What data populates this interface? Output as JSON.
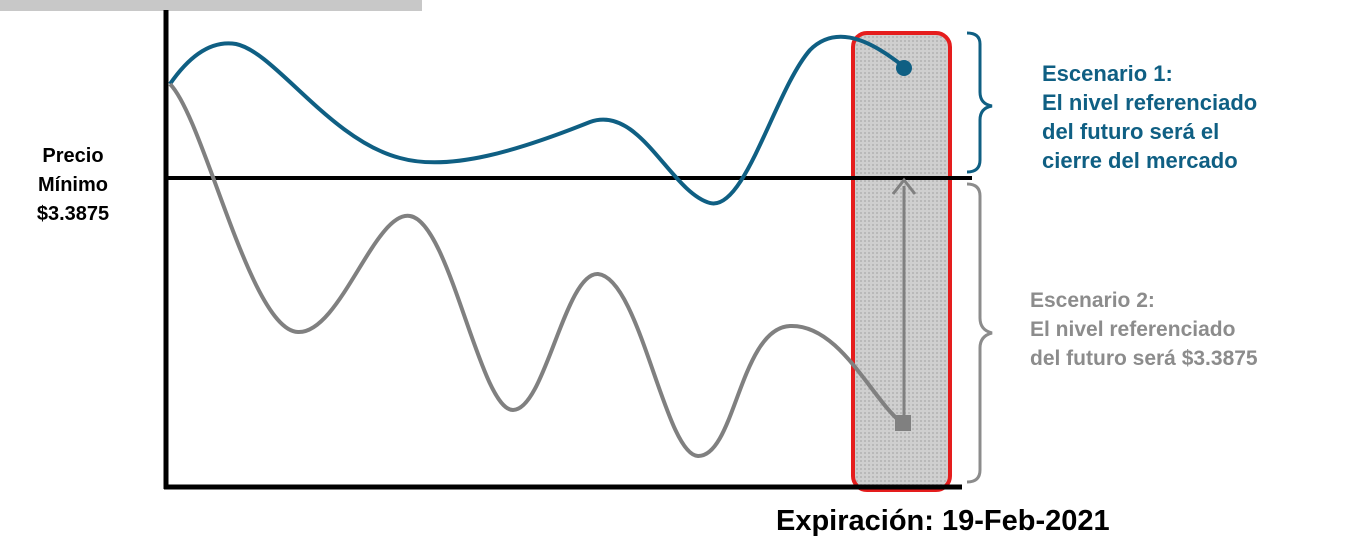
{
  "price_label": {
    "line1": "Precio",
    "line2": "Mínimo",
    "line3": "$3.3875"
  },
  "scenario_1": {
    "line1": "Escenario 1:",
    "line2": "El nivel referenciado",
    "line3": "del futuro será el",
    "line4": "cierre del mercado"
  },
  "scenario_2": {
    "line1": "Escenario 2:",
    "line2": "El nivel referenciado",
    "line3": "del futuro será $3.3875"
  },
  "expiration": "Expiración: 19-Feb-2021",
  "colors": {
    "scenario_1": "#0f5f83",
    "scenario_2": "#8c8c8c",
    "highlight_border": "#e51d1d",
    "highlight_fill": "#c8c8c8",
    "axis": "#000000"
  }
}
